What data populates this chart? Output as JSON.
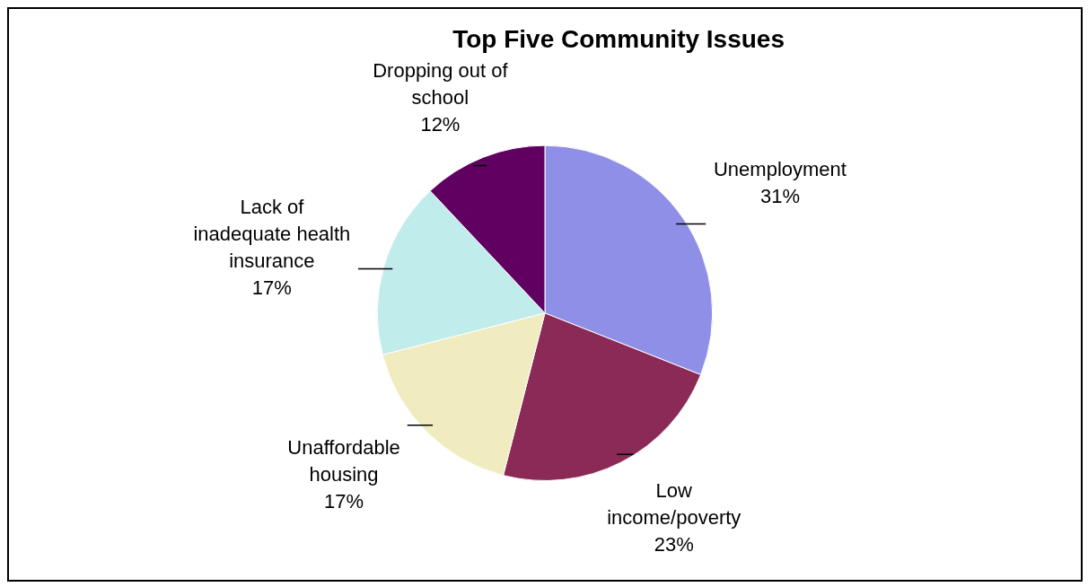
{
  "chart_data": {
    "type": "pie",
    "title": "Top Five Community Issues",
    "categories": [
      "Unemployment",
      "Low income/poverty",
      "Unaffordable housing",
      "Lack of inadequate health insurance",
      "Dropping out of school"
    ],
    "values": [
      31,
      23,
      17,
      17,
      12
    ],
    "value_labels": [
      "31%",
      "23%",
      "17%",
      "17%",
      "12%"
    ],
    "colors": [
      "#8f8fe8",
      "#8b2a56",
      "#f0ecc0",
      "#c0ecec",
      "#600060"
    ],
    "legend": false
  }
}
